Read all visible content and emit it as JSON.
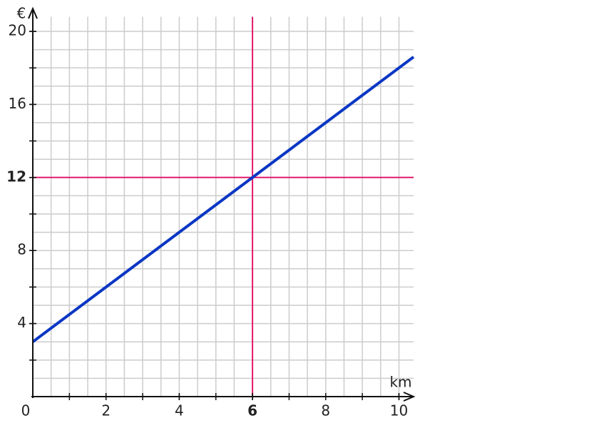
{
  "chart_data": {
    "type": "line",
    "x_label": "km",
    "y_label": "€",
    "x": [
      0,
      10.4
    ],
    "series": [
      {
        "color": "#0a36c4",
        "values": [
          3,
          18.6
        ]
      }
    ],
    "xlim": [
      0,
      10.4
    ],
    "ylim": [
      0,
      20.8
    ],
    "xticks": [
      0,
      2,
      4,
      6,
      8,
      10
    ],
    "yticks": [
      4,
      8,
      12,
      16,
      20
    ],
    "x_minor_tick_step": 1,
    "y_minor_tick_step": 2,
    "grid": true,
    "x_grid_step": 0.5,
    "y_grid_step": 1,
    "reference_lines": {
      "x": 6,
      "y": 12,
      "color": "#e5196e"
    }
  }
}
